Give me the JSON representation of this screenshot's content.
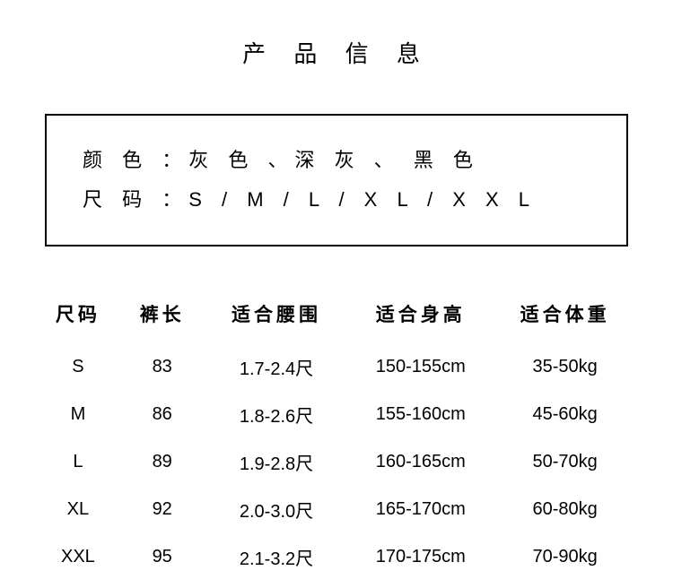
{
  "title": "产 品 信 息",
  "info": {
    "color_label": "颜 色 ：",
    "color_value": "灰 色 、深 灰 、 黑 色",
    "size_label": "尺 码 ：",
    "size_value": "S / M / L / X L / X X L"
  },
  "table": {
    "headers": {
      "size": "尺码",
      "length": "裤长",
      "waist": "适合腰围",
      "height": "适合身高",
      "weight": "适合体重"
    },
    "rows": [
      {
        "size": "S",
        "length": "83",
        "waist": "1.7-2.4尺",
        "height": "150-155cm",
        "weight": "35-50kg"
      },
      {
        "size": "M",
        "length": "86",
        "waist": "1.8-2.6尺",
        "height": "155-160cm",
        "weight": "45-60kg"
      },
      {
        "size": "L",
        "length": "89",
        "waist": "1.9-2.8尺",
        "height": "160-165cm",
        "weight": "50-70kg"
      },
      {
        "size": "XL",
        "length": "92",
        "waist": "2.0-3.0尺",
        "height": "165-170cm",
        "weight": "60-80kg"
      },
      {
        "size": "XXL",
        "length": "95",
        "waist": "2.1-3.2尺",
        "height": "170-175cm",
        "weight": "70-90kg"
      }
    ]
  },
  "style": {
    "background_color": "#ffffff",
    "text_color": "#000000",
    "border_color": "#000000",
    "title_fontsize": 26,
    "info_fontsize": 22,
    "header_fontsize": 21,
    "cell_fontsize": 20
  }
}
